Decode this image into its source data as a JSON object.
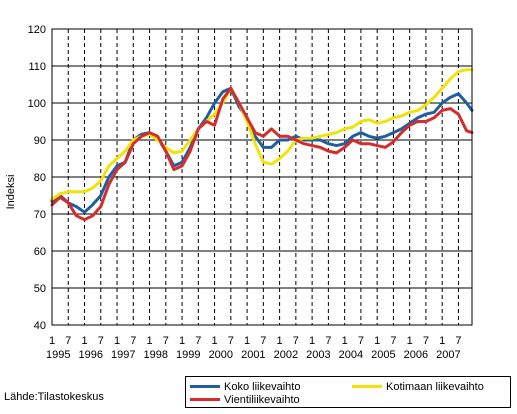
{
  "chart_data": {
    "type": "line",
    "ylabel": "Indeksi",
    "ylim": [
      40,
      120
    ],
    "yticks": [
      40,
      50,
      60,
      70,
      80,
      90,
      100,
      110,
      120
    ],
    "xlim": [
      1995.0,
      2007.917
    ],
    "x_tick_month_labels": [
      "1",
      "7",
      "1",
      "7",
      "1",
      "7",
      "1",
      "7",
      "1",
      "7",
      "1",
      "7",
      "1",
      "7",
      "1",
      "7",
      "1",
      "7",
      "1",
      "7",
      "1",
      "7",
      "1",
      "7",
      "1",
      "7"
    ],
    "x_year_labels": [
      "1995",
      "1996",
      "1997",
      "1998",
      "1999",
      "2000",
      "2001",
      "2002",
      "2003",
      "2004",
      "2005",
      "2006",
      "2007"
    ],
    "grid": "horizontal solid, vertical dashed",
    "legend_position": "bottom-right",
    "series": [
      {
        "name": "Koko liikevaihto",
        "color": "#1f5fa0",
        "x": [
          1995.0,
          1995.25,
          1995.5,
          1995.75,
          1996.0,
          1996.25,
          1996.5,
          1996.75,
          1997.0,
          1997.25,
          1997.5,
          1997.75,
          1998.0,
          1998.25,
          1998.5,
          1998.75,
          1999.0,
          1999.25,
          1999.5,
          1999.75,
          2000.0,
          2000.25,
          2000.5,
          2000.75,
          2001.0,
          2001.25,
          2001.5,
          2001.75,
          2002.0,
          2002.25,
          2002.5,
          2002.75,
          2003.0,
          2003.25,
          2003.5,
          2003.75,
          2004.0,
          2004.25,
          2004.5,
          2004.75,
          2005.0,
          2005.25,
          2005.5,
          2005.75,
          2006.0,
          2006.25,
          2006.5,
          2006.75,
          2007.0,
          2007.25,
          2007.5,
          2007.75,
          2007.917
        ],
        "values": [
          73.5,
          75,
          73,
          72,
          70.5,
          72.5,
          75,
          80,
          83,
          84,
          90,
          91.5,
          92,
          90.5,
          87,
          83,
          84,
          88,
          93,
          96,
          100,
          103,
          104,
          99,
          96,
          91,
          88,
          88,
          90,
          90,
          91,
          90,
          90,
          90,
          89,
          88.5,
          89,
          91,
          92,
          91,
          90.5,
          91,
          92,
          93,
          94.5,
          96,
          97,
          97.5,
          100,
          101.5,
          102.5,
          100,
          98
        ]
      },
      {
        "name": "Kotimaan liikevaihto",
        "color": "#f2e20a",
        "x": [
          1995.0,
          1995.25,
          1995.5,
          1995.75,
          1996.0,
          1996.25,
          1996.5,
          1996.75,
          1997.0,
          1997.25,
          1997.5,
          1997.75,
          1998.0,
          1998.25,
          1998.5,
          1998.75,
          1999.0,
          1999.25,
          1999.5,
          1999.75,
          2000.0,
          2000.25,
          2000.5,
          2000.75,
          2001.0,
          2001.25,
          2001.5,
          2001.75,
          2002.0,
          2002.25,
          2002.5,
          2002.75,
          2003.0,
          2003.25,
          2003.5,
          2003.75,
          2004.0,
          2004.25,
          2004.5,
          2004.75,
          2005.0,
          2005.25,
          2005.5,
          2005.75,
          2006.0,
          2006.25,
          2006.5,
          2006.75,
          2007.0,
          2007.25,
          2007.5,
          2007.75,
          2007.917
        ],
        "values": [
          74,
          75.5,
          76,
          76,
          76,
          77,
          79,
          83,
          85,
          87,
          90,
          91,
          91.5,
          90,
          88,
          86.5,
          87,
          90,
          93,
          95,
          97,
          100,
          104,
          100,
          95,
          89,
          84,
          83.5,
          85,
          87,
          90,
          90.5,
          90.5,
          91,
          91.5,
          92,
          93,
          93.5,
          95,
          95.5,
          94.5,
          95,
          96,
          96.5,
          97.5,
          98,
          99.5,
          101.5,
          104,
          106.5,
          108.5,
          109,
          109
        ]
      },
      {
        "name": "Vientiliikevaihto",
        "color": "#d42d2d",
        "x": [
          1995.0,
          1995.25,
          1995.5,
          1995.75,
          1996.0,
          1996.25,
          1996.5,
          1996.75,
          1997.0,
          1997.25,
          1997.5,
          1997.75,
          1998.0,
          1998.25,
          1998.5,
          1998.75,
          1999.0,
          1999.25,
          1999.5,
          1999.75,
          2000.0,
          2000.25,
          2000.5,
          2000.75,
          2001.0,
          2001.25,
          2001.5,
          2001.75,
          2002.0,
          2002.25,
          2002.5,
          2002.75,
          2003.0,
          2003.25,
          2003.5,
          2003.75,
          2004.0,
          2004.25,
          2004.5,
          2004.75,
          2005.0,
          2005.25,
          2005.5,
          2005.75,
          2006.0,
          2006.25,
          2006.5,
          2006.75,
          2007.0,
          2007.25,
          2007.5,
          2007.75,
          2007.917
        ],
        "values": [
          72.5,
          74.5,
          73,
          69.5,
          68.5,
          69.5,
          72,
          78,
          82,
          84,
          89,
          91,
          92,
          91,
          87,
          82,
          83,
          87,
          93,
          95,
          94,
          101,
          104,
          100,
          96,
          92,
          91,
          93,
          91,
          91,
          90,
          89,
          88.5,
          88,
          87,
          86.5,
          88,
          90,
          89,
          89,
          88.5,
          88,
          89.5,
          92,
          94,
          95,
          95,
          96,
          98,
          98.5,
          97,
          92.5,
          92
        ]
      }
    ]
  },
  "source_text": "Lähde:Tilastokeskus"
}
